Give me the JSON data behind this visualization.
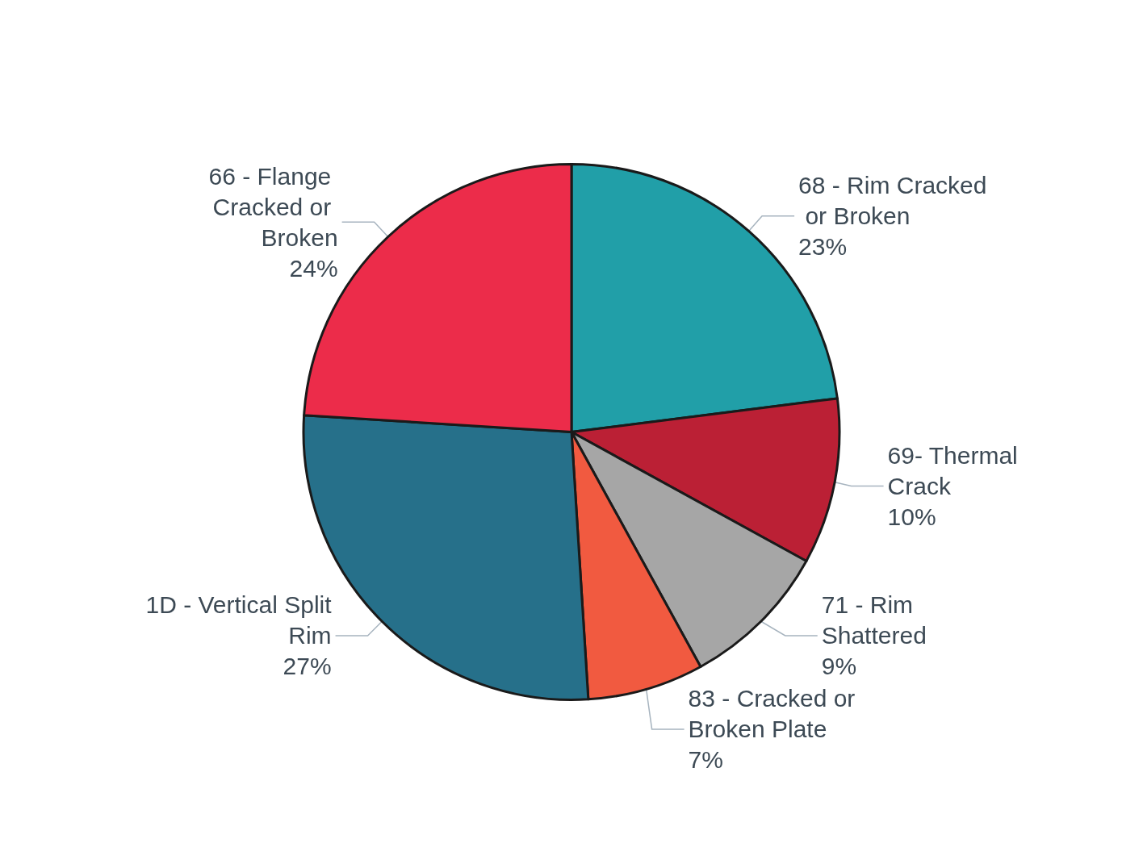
{
  "chart_data": {
    "type": "pie",
    "categories": [
      "68 - Rim Cracked or Broken",
      "69- Thermal Crack",
      "71 - Rim Shattered",
      "83 - Cracked or Broken Plate",
      "1D - Vertical Split Rim",
      "66 - Flange Cracked or Broken"
    ],
    "values": [
      23,
      10,
      9,
      7,
      27,
      24
    ],
    "value_labels": [
      "23%",
      "10%",
      "9%",
      "7%",
      "27%",
      "24%"
    ],
    "colors": [
      "#219fa8",
      "#bb2035",
      "#a6a6a6",
      "#f15a40",
      "#26708a",
      "#ec2c4a"
    ],
    "legend": false
  }
}
